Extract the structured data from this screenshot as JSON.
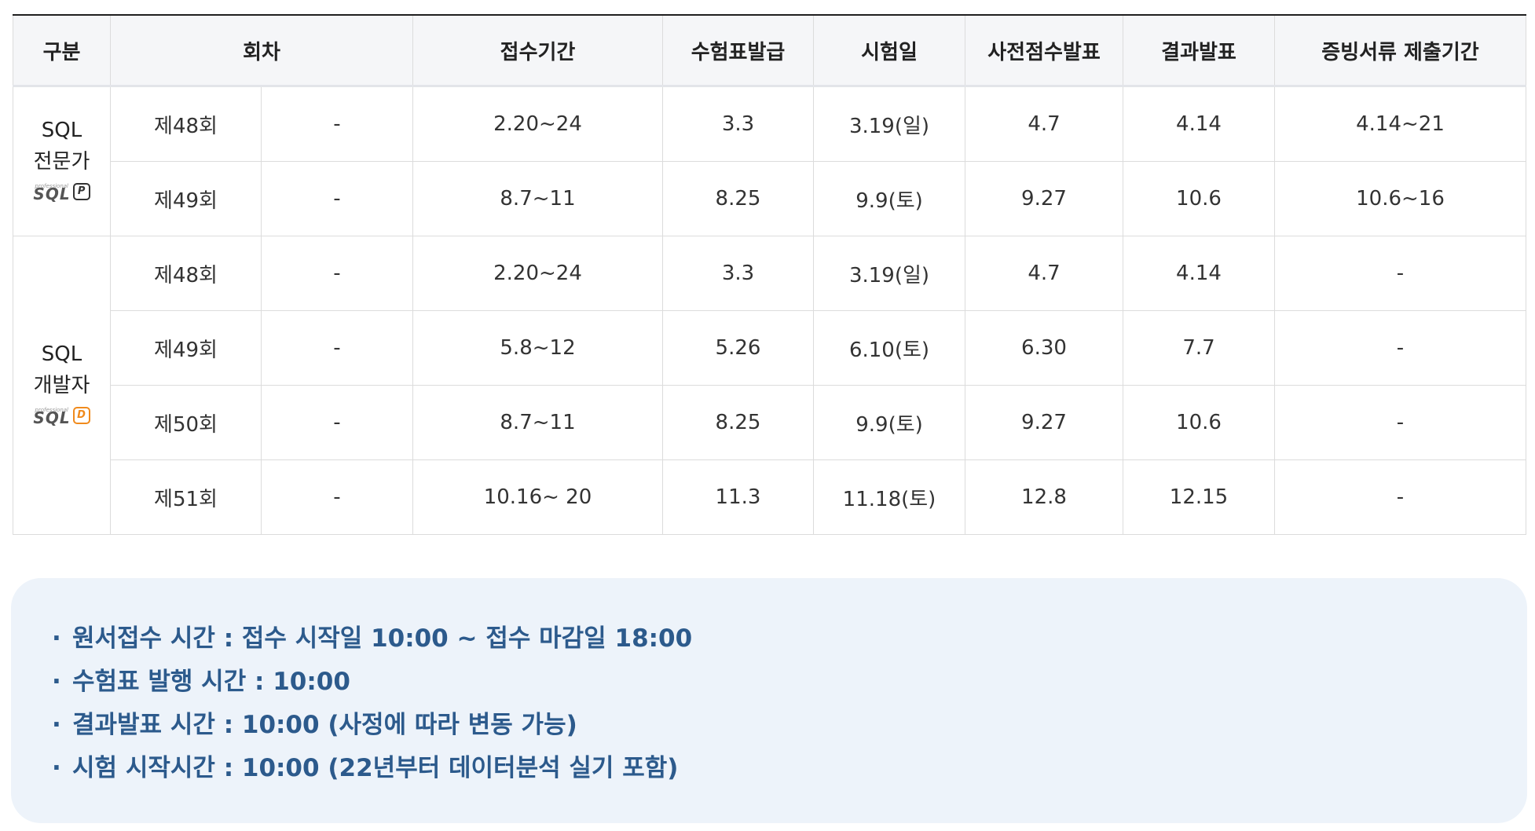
{
  "table": {
    "headers": [
      "구분",
      "회차",
      "접수기간",
      "수험표발급",
      "시험일",
      "사전점수발표",
      "결과발표",
      "증빙서류 제출기간"
    ],
    "groups": [
      {
        "name_line1": "SQL",
        "name_line2": "전문가",
        "logo_text": "SQL",
        "badge": "P",
        "rows": [
          [
            "제48회",
            "-",
            "2.20~24",
            "3.3",
            "3.19(일)",
            "4.7",
            "4.14",
            "4.14~21"
          ],
          [
            "제49회",
            "-",
            "8.7~11",
            "8.25",
            "9.9(토)",
            "9.27",
            "10.6",
            "10.6~16"
          ]
        ]
      },
      {
        "name_line1": "SQL",
        "name_line2": "개발자",
        "logo_text": "SQL",
        "badge": "D",
        "rows": [
          [
            "제48회",
            "-",
            "2.20~24",
            "3.3",
            "3.19(일)",
            "4.7",
            "4.14",
            "-"
          ],
          [
            "제49회",
            "-",
            "5.8~12",
            "5.26",
            "6.10(토)",
            "6.30",
            "7.7",
            "-"
          ],
          [
            "제50회",
            "-",
            "8.7~11",
            "8.25",
            "9.9(토)",
            "9.27",
            "10.6",
            "-"
          ],
          [
            "제51회",
            "-",
            "10.16~ 20",
            "11.3",
            "11.18(토)",
            "12.8",
            "12.15",
            "-"
          ]
        ]
      }
    ]
  },
  "notes": {
    "bullet": "·",
    "items": [
      "원서접수 시간 : 접수 시작일 10:00 ~ 접수 마감일 18:00",
      "수험표 발행 시간 : 10:00",
      "결과발표 시간 : 10:00 (사정에 따라 변동 가능)",
      "시험 시작시간 : 10:00 (22년부터 데이터분석 실기 포함)"
    ]
  },
  "colors": {
    "note_text": "#2c5a8c",
    "note_background": "#edf3fa",
    "header_background": "#f5f6f8",
    "badge_developer": "#f08a1c"
  }
}
